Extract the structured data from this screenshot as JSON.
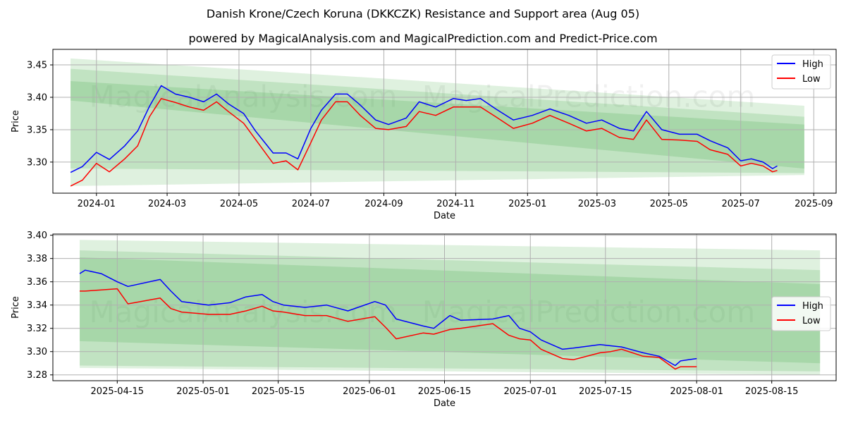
{
  "title": "Danish Krone/Czech Koruna (DKKCZK) Resistance and Support area (Aug 05)",
  "subtitle": "powered by MagicalAnalysis.com and MagicalPrediction.com and Predict-Price.com",
  "watermark": [
    "MagicalAnalysis.com",
    "MagicalPrediction.com"
  ],
  "colors": {
    "high": "#0000ff",
    "low": "#ff0000",
    "band": "#4caf50"
  },
  "chart_data": [
    {
      "type": "line",
      "xlabel": "Date",
      "ylabel": "Price",
      "x_ticks": [
        "2024-01",
        "2024-03",
        "2024-05",
        "2024-07",
        "2024-09",
        "2024-11",
        "2025-01",
        "2025-03",
        "2025-05",
        "2025-07",
        "2025-09"
      ],
      "y_ticks": [
        "3.30",
        "3.35",
        "3.40",
        "3.45"
      ],
      "xlim": [
        "2023-11-25",
        "2025-09-20"
      ],
      "ylim": [
        3.252,
        3.474
      ],
      "legend": "top-right",
      "bands": [
        {
          "x": [
            "2023-12-10",
            "2025-08-24"
          ],
          "upper": [
            3.46,
            3.387
          ],
          "lower": [
            3.263,
            3.28
          ],
          "opacity": 0.18
        },
        {
          "x": [
            "2023-12-10",
            "2025-08-24"
          ],
          "upper": [
            3.444,
            3.37
          ],
          "lower": [
            3.29,
            3.283
          ],
          "opacity": 0.2
        },
        {
          "x": [
            "2023-12-10",
            "2025-08-24"
          ],
          "upper": [
            3.425,
            3.358
          ],
          "lower": [
            3.395,
            3.29
          ],
          "opacity": 0.22
        }
      ],
      "series": [
        {
          "name": "High",
          "x": [
            "2023-12-10",
            "2023-12-20",
            "2024-01-01",
            "2024-01-12",
            "2024-01-25",
            "2024-02-05",
            "2024-02-15",
            "2024-02-25",
            "2024-03-08",
            "2024-03-20",
            "2024-04-01",
            "2024-04-12",
            "2024-04-22",
            "2024-05-05",
            "2024-05-15",
            "2024-05-30",
            "2024-06-10",
            "2024-06-20",
            "2024-07-01",
            "2024-07-10",
            "2024-07-22",
            "2024-08-01",
            "2024-08-12",
            "2024-08-25",
            "2024-09-05",
            "2024-09-20",
            "2024-10-01",
            "2024-10-15",
            "2024-10-30",
            "2024-11-10",
            "2024-11-22",
            "2024-12-05",
            "2024-12-20",
            "2025-01-05",
            "2025-01-20",
            "2025-02-05",
            "2025-02-20",
            "2025-03-05",
            "2025-03-20",
            "2025-04-01",
            "2025-04-12",
            "2025-04-25",
            "2025-05-10",
            "2025-05-25",
            "2025-06-05",
            "2025-06-20",
            "2025-07-01",
            "2025-07-10",
            "2025-07-20",
            "2025-07-28",
            "2025-08-01"
          ],
          "values": [
            3.284,
            3.293,
            3.315,
            3.304,
            3.325,
            3.348,
            3.386,
            3.418,
            3.405,
            3.4,
            3.393,
            3.405,
            3.39,
            3.375,
            3.348,
            3.314,
            3.314,
            3.305,
            3.352,
            3.38,
            3.405,
            3.405,
            3.388,
            3.365,
            3.358,
            3.368,
            3.393,
            3.385,
            3.398,
            3.395,
            3.398,
            3.382,
            3.365,
            3.372,
            3.382,
            3.372,
            3.36,
            3.365,
            3.352,
            3.348,
            3.378,
            3.35,
            3.343,
            3.343,
            3.333,
            3.322,
            3.302,
            3.305,
            3.3,
            3.29,
            3.294
          ]
        },
        {
          "name": "Low",
          "x": [
            "2023-12-10",
            "2023-12-20",
            "2024-01-01",
            "2024-01-12",
            "2024-01-25",
            "2024-02-05",
            "2024-02-15",
            "2024-02-25",
            "2024-03-08",
            "2024-03-20",
            "2024-04-01",
            "2024-04-12",
            "2024-04-22",
            "2024-05-05",
            "2024-05-15",
            "2024-05-30",
            "2024-06-10",
            "2024-06-20",
            "2024-07-01",
            "2024-07-10",
            "2024-07-22",
            "2024-08-01",
            "2024-08-12",
            "2024-08-25",
            "2024-09-05",
            "2024-09-20",
            "2024-10-01",
            "2024-10-15",
            "2024-10-30",
            "2024-11-10",
            "2024-11-22",
            "2024-12-05",
            "2024-12-20",
            "2025-01-05",
            "2025-01-20",
            "2025-02-05",
            "2025-02-20",
            "2025-03-05",
            "2025-03-20",
            "2025-04-01",
            "2025-04-12",
            "2025-04-25",
            "2025-05-10",
            "2025-05-25",
            "2025-06-05",
            "2025-06-20",
            "2025-07-01",
            "2025-07-10",
            "2025-07-20",
            "2025-07-28",
            "2025-08-01"
          ],
          "values": [
            3.263,
            3.272,
            3.298,
            3.285,
            3.305,
            3.325,
            3.37,
            3.398,
            3.392,
            3.385,
            3.38,
            3.393,
            3.378,
            3.36,
            3.335,
            3.298,
            3.302,
            3.288,
            3.33,
            3.365,
            3.393,
            3.393,
            3.372,
            3.352,
            3.35,
            3.355,
            3.378,
            3.372,
            3.385,
            3.385,
            3.385,
            3.37,
            3.352,
            3.36,
            3.372,
            3.36,
            3.348,
            3.352,
            3.338,
            3.335,
            3.365,
            3.335,
            3.334,
            3.332,
            3.319,
            3.312,
            3.294,
            3.298,
            3.294,
            3.285,
            3.287
          ]
        }
      ]
    },
    {
      "type": "line",
      "xlabel": "Date",
      "ylabel": "Price",
      "x_ticks": [
        "2025-04-15",
        "2025-05-01",
        "2025-05-15",
        "2025-06-01",
        "2025-06-15",
        "2025-07-01",
        "2025-07-15",
        "2025-08-01",
        "2025-08-15"
      ],
      "y_ticks": [
        "3.28",
        "3.30",
        "3.32",
        "3.34",
        "3.36",
        "3.38",
        "3.40"
      ],
      "xlim": [
        "2025-04-03",
        "2025-08-27"
      ],
      "ylim": [
        3.275,
        3.401
      ],
      "legend": "center-right",
      "bands": [
        {
          "x": [
            "2025-04-08",
            "2025-08-24"
          ],
          "upper": [
            3.396,
            3.387
          ],
          "lower": [
            3.286,
            3.28
          ],
          "opacity": 0.18
        },
        {
          "x": [
            "2025-04-08",
            "2025-08-24"
          ],
          "upper": [
            3.387,
            3.37
          ],
          "lower": [
            3.288,
            3.283
          ],
          "opacity": 0.2
        },
        {
          "x": [
            "2025-04-08",
            "2025-08-24"
          ],
          "upper": [
            3.381,
            3.358
          ],
          "lower": [
            3.309,
            3.29
          ],
          "opacity": 0.22
        }
      ],
      "series": [
        {
          "name": "High",
          "x": [
            "2025-04-08",
            "2025-04-09",
            "2025-04-12",
            "2025-04-15",
            "2025-04-17",
            "2025-04-23",
            "2025-04-25",
            "2025-04-27",
            "2025-05-02",
            "2025-05-06",
            "2025-05-09",
            "2025-05-12",
            "2025-05-14",
            "2025-05-16",
            "2025-05-20",
            "2025-05-24",
            "2025-05-28",
            "2025-06-02",
            "2025-06-04",
            "2025-06-06",
            "2025-06-11",
            "2025-06-13",
            "2025-06-16",
            "2025-06-18",
            "2025-06-24",
            "2025-06-27",
            "2025-06-29",
            "2025-07-01",
            "2025-07-03",
            "2025-07-07",
            "2025-07-09",
            "2025-07-14",
            "2025-07-16",
            "2025-07-18",
            "2025-07-22",
            "2025-07-25",
            "2025-07-28",
            "2025-07-29",
            "2025-08-01"
          ],
          "values": [
            3.367,
            3.37,
            3.367,
            3.36,
            3.356,
            3.362,
            3.352,
            3.343,
            3.34,
            3.342,
            3.347,
            3.349,
            3.343,
            3.34,
            3.338,
            3.34,
            3.335,
            3.343,
            3.34,
            3.328,
            3.322,
            3.32,
            3.331,
            3.327,
            3.328,
            3.331,
            3.32,
            3.317,
            3.31,
            3.302,
            3.303,
            3.306,
            3.305,
            3.304,
            3.299,
            3.296,
            3.288,
            3.292,
            3.294
          ]
        },
        {
          "name": "Low",
          "x": [
            "2025-04-08",
            "2025-04-09",
            "2025-04-12",
            "2025-04-15",
            "2025-04-17",
            "2025-04-23",
            "2025-04-25",
            "2025-04-27",
            "2025-05-02",
            "2025-05-06",
            "2025-05-09",
            "2025-05-12",
            "2025-05-14",
            "2025-05-16",
            "2025-05-20",
            "2025-05-24",
            "2025-05-28",
            "2025-06-02",
            "2025-06-04",
            "2025-06-06",
            "2025-06-11",
            "2025-06-13",
            "2025-06-16",
            "2025-06-18",
            "2025-06-24",
            "2025-06-27",
            "2025-06-29",
            "2025-07-01",
            "2025-07-03",
            "2025-07-07",
            "2025-07-09",
            "2025-07-14",
            "2025-07-16",
            "2025-07-18",
            "2025-07-22",
            "2025-07-25",
            "2025-07-28",
            "2025-07-29",
            "2025-08-01"
          ],
          "values": [
            3.352,
            3.352,
            3.353,
            3.354,
            3.341,
            3.346,
            3.337,
            3.334,
            3.332,
            3.332,
            3.335,
            3.339,
            3.335,
            3.334,
            3.331,
            3.331,
            3.326,
            3.33,
            3.321,
            3.311,
            3.316,
            3.315,
            3.319,
            3.32,
            3.324,
            3.314,
            3.311,
            3.31,
            3.302,
            3.294,
            3.293,
            3.299,
            3.3,
            3.302,
            3.296,
            3.295,
            3.285,
            3.287,
            3.287
          ]
        }
      ]
    }
  ]
}
